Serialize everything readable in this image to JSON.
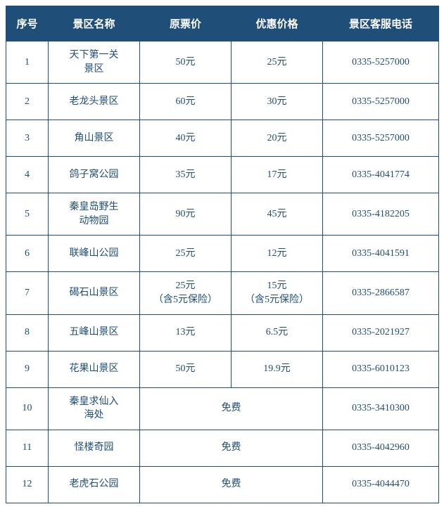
{
  "header": {
    "seq": "序号",
    "name": "景区名称",
    "original": "原票价",
    "discount": "优惠价格",
    "phone": "景区客服电话"
  },
  "rows": [
    {
      "seq": "1",
      "name": "天下第一关\n景区",
      "original": "50元",
      "discount": "25元",
      "phone": "0335-5257000"
    },
    {
      "seq": "2",
      "name": "老龙头景区",
      "original": "60元",
      "discount": "30元",
      "phone": "0335-5257000"
    },
    {
      "seq": "3",
      "name": "角山景区",
      "original": "40元",
      "discount": "20元",
      "phone": "0335-5257000"
    },
    {
      "seq": "4",
      "name": "鸽子窝公园",
      "original": "35元",
      "discount": "17元",
      "phone": "0335-4041774"
    },
    {
      "seq": "5",
      "name": "秦皇岛野生\n动物园",
      "original": "90元",
      "discount": "45元",
      "phone": "0335-4182205"
    },
    {
      "seq": "6",
      "name": "联峰山公园",
      "original": "25元",
      "discount": "12元",
      "phone": "0335-4041591"
    },
    {
      "seq": "7",
      "name": "碣石山景区",
      "original": "25元\n（含5元保险）",
      "discount": "15元\n（含5元保险）",
      "phone": "0335-2866587"
    },
    {
      "seq": "8",
      "name": "五峰山景区",
      "original": "13元",
      "discount": "6.5元",
      "phone": "0335-2021927"
    },
    {
      "seq": "9",
      "name": "花果山景区",
      "original": "50元",
      "discount": "19.9元",
      "phone": "0335-6010123"
    },
    {
      "seq": "10",
      "name": "秦皇求仙入\n海处",
      "merged": "免费",
      "phone": "0335-3410300"
    },
    {
      "seq": "11",
      "name": "怪楼奇园",
      "merged": "免费",
      "phone": "0335-4042960"
    },
    {
      "seq": "12",
      "name": "老虎石公园",
      "merged": "免费",
      "phone": "0335-4044470"
    }
  ],
  "colors": {
    "header_bg": "#1f4e79",
    "header_text": "#ffffff",
    "border": "#1f4e79",
    "cell_text": "#1f4e79",
    "bg": "#ffffff"
  }
}
